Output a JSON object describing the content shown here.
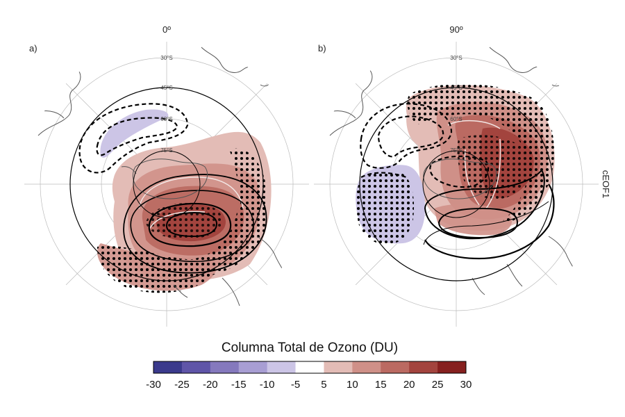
{
  "panels": [
    {
      "tag": "a)",
      "title": "0º",
      "lat_labels": [
        "30°S",
        "45°S",
        "60°S",
        "75°S"
      ]
    },
    {
      "tag": "b)",
      "title": "90º",
      "lat_labels": [
        "30°S",
        "45°S",
        "60°S",
        "75°S"
      ]
    }
  ],
  "side_label": "cEOF1",
  "colorbar": {
    "title": "Columna Total de Ozono (DU)",
    "ticks": [
      "-30",
      "-25",
      "-20",
      "-15",
      "-10",
      "-5",
      "5",
      "10",
      "15",
      "20",
      "25",
      "30"
    ],
    "colors": [
      "#3b3a8c",
      "#5f55a8",
      "#8579bd",
      "#a89ed3",
      "#ccc5e6",
      "#ffffff",
      "#e3bcb6",
      "#cf9088",
      "#bb6a62",
      "#a3443e",
      "#86201f"
    ]
  },
  "colors": {
    "positive_light": "#e3bcb6",
    "positive_mid": "#cf9088",
    "positive_strong": "#bb6a62",
    "positive_dark": "#a3443e",
    "negative_light": "#ccc5e6",
    "coast": "#555555",
    "grid": "#bbbbbb"
  }
}
